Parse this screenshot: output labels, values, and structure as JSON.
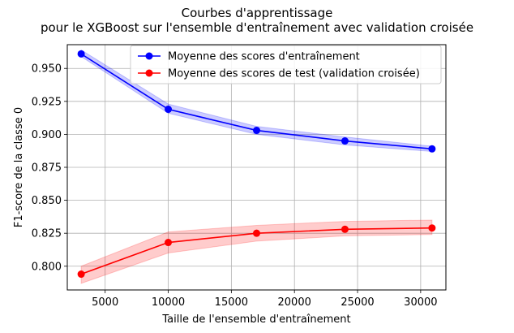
{
  "chart_data": {
    "type": "line",
    "title": "Courbes d'apprentissage",
    "subtitle": "pour le XGBoost sur l'ensemble d'entraînement avec validation croisée",
    "xlabel": "Taille de l'ensemble d'entraînement",
    "ylabel": "F1-score de la classe 0",
    "xlim": [
      2000,
      32000
    ],
    "ylim": [
      0.782,
      0.968
    ],
    "xticks": [
      5000,
      10000,
      15000,
      20000,
      25000,
      30000
    ],
    "yticks": [
      0.8,
      0.825,
      0.85,
      0.875,
      0.9,
      0.925,
      0.95
    ],
    "grid": true,
    "legend_position": "top-right",
    "x": [
      3100,
      10000,
      17000,
      24000,
      30900
    ],
    "series": [
      {
        "name": "Moyenne des scores d'entraînement",
        "color": "#0000ff",
        "band_color": "#0000ff",
        "values": [
          0.961,
          0.919,
          0.903,
          0.895,
          0.889
        ],
        "lower": [
          0.959,
          0.916,
          0.9,
          0.892,
          0.887
        ],
        "upper": [
          0.964,
          0.923,
          0.906,
          0.898,
          0.891
        ]
      },
      {
        "name": "Moyenne des scores de test (validation croisée)",
        "color": "#ff0000",
        "band_color": "#ff0000",
        "values": [
          0.794,
          0.818,
          0.825,
          0.828,
          0.829
        ],
        "lower": [
          0.787,
          0.81,
          0.819,
          0.823,
          0.824
        ],
        "upper": [
          0.8,
          0.826,
          0.831,
          0.834,
          0.835
        ]
      }
    ]
  }
}
